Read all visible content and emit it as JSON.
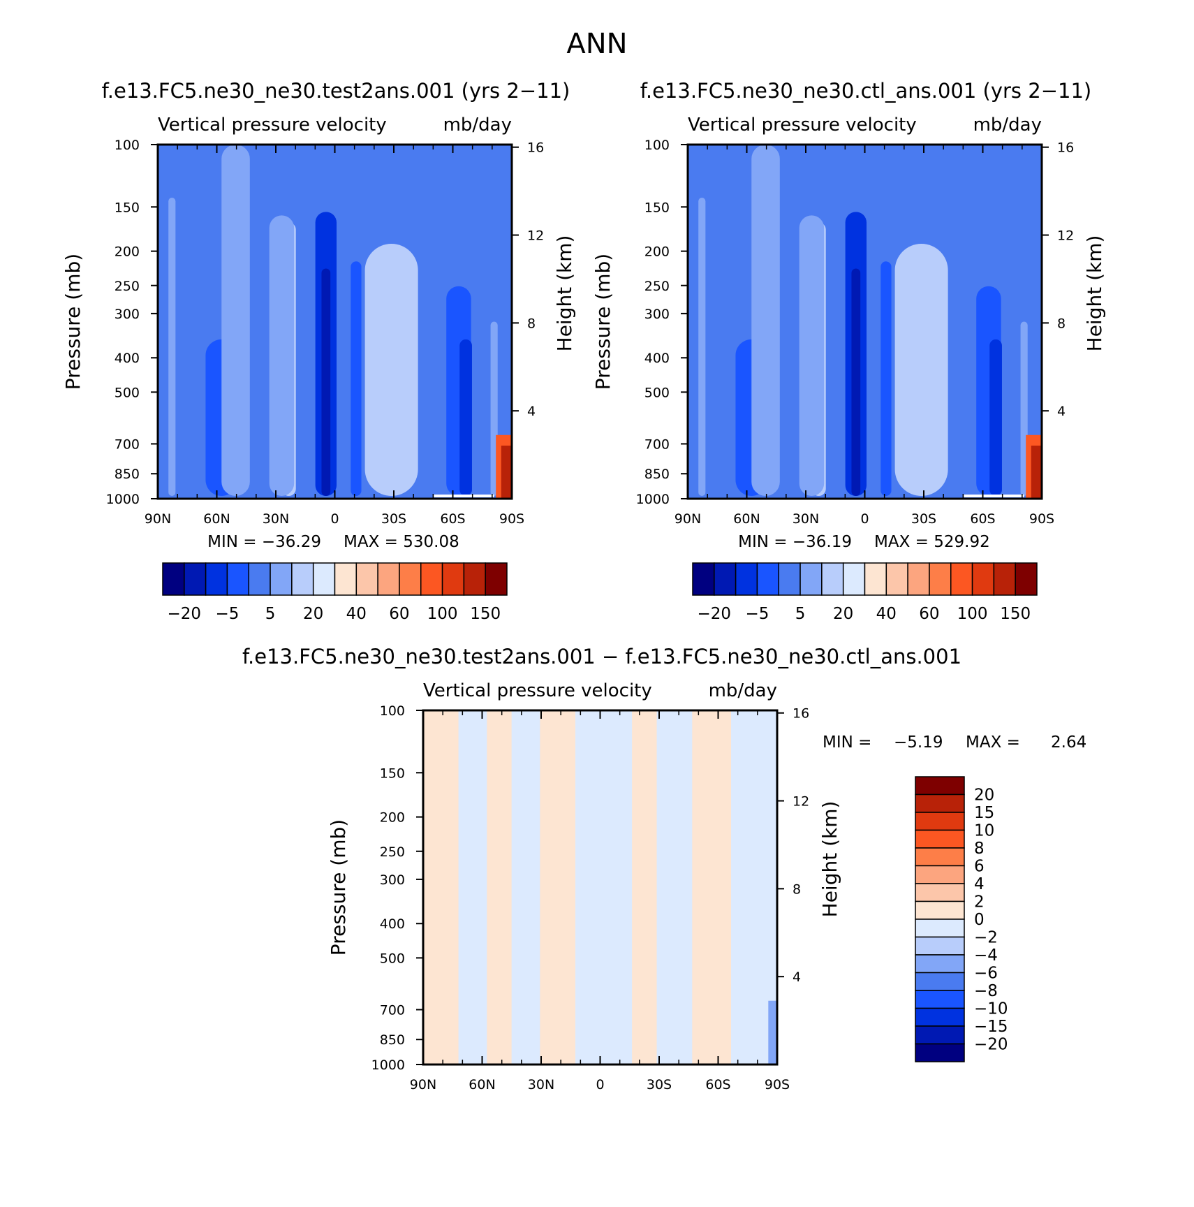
{
  "figure": {
    "title": "ANN"
  },
  "chart_data": [
    {
      "type": "heatmap",
      "panel": "test",
      "title": "f.e13.FC5.ne30_ne30.test2ans.001 (yrs 2−11)",
      "subtitle_left": "Vertical pressure velocity",
      "subtitle_right": "mb/day",
      "xlabel": "",
      "ylabel": "Pressure (mb)",
      "y2label": "Height (km)",
      "x_ticks": [
        "90N",
        "60N",
        "30N",
        "0",
        "30S",
        "60S",
        "90S"
      ],
      "x_range": [
        90,
        -90
      ],
      "y_ticks": [
        100,
        150,
        200,
        250,
        300,
        400,
        500,
        700,
        850,
        1000
      ],
      "y_range": [
        100,
        1000
      ],
      "y_scale": "log",
      "y2_ticks": [
        16,
        12,
        8,
        4
      ],
      "min_text": "MIN = −36.29",
      "max_text": "MAX = 530.08",
      "min": -36.29,
      "max": 530.08,
      "colorbar": {
        "orientation": "horizontal",
        "colors": [
          "#000080",
          "#0019b3",
          "#0032e0",
          "#1a55ff",
          "#4a7bf0",
          "#82a6f7",
          "#b8cdfb",
          "#dceafe",
          "#fde5d2",
          "#fcc6aa",
          "#fca57f",
          "#fd7e48",
          "#fc5722",
          "#e03a10",
          "#b82208",
          "#7e0000"
        ],
        "labels": [
          "−20",
          "−5",
          "5",
          "20",
          "40",
          "60",
          "100",
          "150"
        ]
      }
    },
    {
      "type": "heatmap",
      "panel": "control",
      "title": "f.e13.FC5.ne30_ne30.ctl_ans.001 (yrs 2−11)",
      "subtitle_left": "Vertical pressure velocity",
      "subtitle_right": "mb/day",
      "xlabel": "",
      "ylabel": "Pressure (mb)",
      "y2label": "Height (km)",
      "x_ticks": [
        "90N",
        "60N",
        "30N",
        "0",
        "30S",
        "60S",
        "90S"
      ],
      "x_range": [
        90,
        -90
      ],
      "y_ticks": [
        100,
        150,
        200,
        250,
        300,
        400,
        500,
        700,
        850,
        1000
      ],
      "y_range": [
        100,
        1000
      ],
      "y_scale": "log",
      "y2_ticks": [
        16,
        12,
        8,
        4
      ],
      "min_text": "MIN = −36.19",
      "max_text": "MAX = 529.92",
      "min": -36.19,
      "max": 529.92,
      "colorbar": {
        "orientation": "horizontal",
        "colors": [
          "#000080",
          "#0019b3",
          "#0032e0",
          "#1a55ff",
          "#4a7bf0",
          "#82a6f7",
          "#b8cdfb",
          "#dceafe",
          "#fde5d2",
          "#fcc6aa",
          "#fca57f",
          "#fd7e48",
          "#fc5722",
          "#e03a10",
          "#b82208",
          "#7e0000"
        ],
        "labels": [
          "−20",
          "−5",
          "5",
          "20",
          "40",
          "60",
          "100",
          "150"
        ]
      }
    },
    {
      "type": "heatmap",
      "panel": "difference",
      "title": "f.e13.FC5.ne30_ne30.test2ans.001 − f.e13.FC5.ne30_ne30.ctl_ans.001",
      "subtitle_left": "Vertical pressure velocity",
      "subtitle_right": "mb/day",
      "xlabel": "",
      "ylabel": "Pressure (mb)",
      "y2label": "Height (km)",
      "x_ticks": [
        "90N",
        "60N",
        "30N",
        "0",
        "30S",
        "60S",
        "90S"
      ],
      "x_range": [
        90,
        -90
      ],
      "y_ticks": [
        100,
        150,
        200,
        250,
        300,
        400,
        500,
        700,
        850,
        1000
      ],
      "y_range": [
        100,
        1000
      ],
      "y_scale": "log",
      "y2_ticks": [
        16,
        12,
        8,
        4
      ],
      "min_label": "MIN =",
      "min_value": "−5.19",
      "max_label": "MAX =",
      "max_value": "2.64",
      "min": -5.19,
      "max": 2.64,
      "colorbar": {
        "orientation": "vertical",
        "colors": [
          "#7e0000",
          "#b82208",
          "#e03a10",
          "#fc5722",
          "#fd7e48",
          "#fca57f",
          "#fcc6aa",
          "#fde5d2",
          "#dceafe",
          "#b8cdfb",
          "#82a6f7",
          "#4a7bf0",
          "#1a55ff",
          "#0032e0",
          "#0019b3",
          "#000080"
        ],
        "labels": [
          "20",
          "15",
          "10",
          "8",
          "6",
          "4",
          "2",
          "0",
          "−2",
          "−4",
          "−6",
          "−8",
          "−10",
          "−15",
          "−20"
        ]
      }
    }
  ]
}
